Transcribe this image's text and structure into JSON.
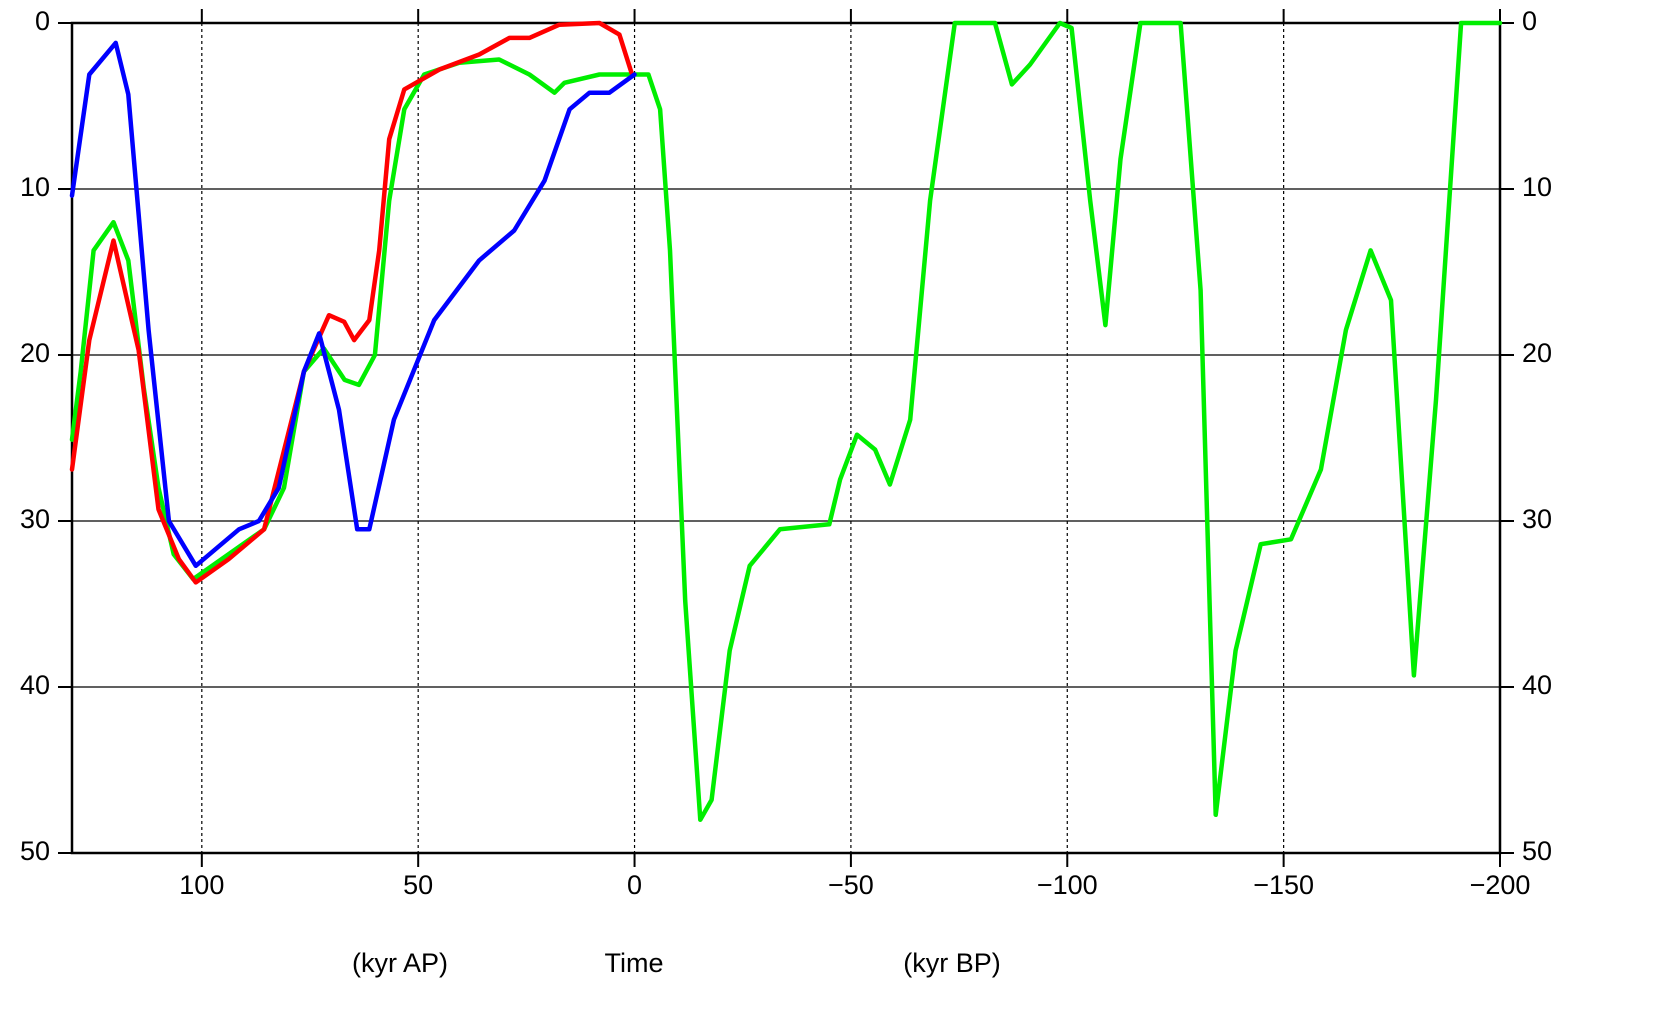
{
  "chart_data": {
    "type": "line",
    "xlim": [
      130,
      -200
    ],
    "xticks": [
      100,
      50,
      0,
      {
        "value": -50,
        "label": "−50"
      },
      {
        "value": -100,
        "label": "−100"
      },
      {
        "value": -150,
        "label": "−150"
      },
      {
        "value": -200,
        "label": "−200"
      }
    ],
    "ylim": [
      50,
      0
    ],
    "yticks": [
      0,
      10,
      20,
      30,
      40,
      50
    ],
    "grid": true,
    "annotations": [
      "(kyr AP)",
      "Time",
      "(kyr BP)"
    ],
    "series": [
      {
        "color": "#00ee00",
        "x": [
          130,
          128,
          125,
          120.4,
          117,
          113.4,
          110,
          106.5,
          102,
          93.8,
          85.6,
          81,
          76.4,
          71.8,
          67,
          63.7,
          60,
          56.7,
          53.2,
          48.6,
          40.5,
          31.3,
          24.3,
          18.5,
          16.2,
          8.1,
          0,
          -3.2,
          -5.9,
          -8.2,
          -11.7,
          -15.2,
          -17.8,
          -22,
          -26.6,
          -33.6,
          -45,
          -47.5,
          -51.4,
          -55.6,
          -59,
          -63.7,
          -68.3,
          -74,
          -83.3,
          -87.2,
          -91.4,
          -98.3,
          -101,
          -105.3,
          -108.8,
          -112.3,
          -116.9,
          -126.2,
          -130.8,
          -134.3,
          -138.9,
          -144.7,
          -151.7,
          -158.6,
          -164.4,
          -170.1,
          -174.8,
          -180.1,
          -185.2,
          -191,
          -200
        ],
        "values": [
          25.1,
          21,
          13.7,
          12,
          14.3,
          22,
          28,
          32,
          33.5,
          32,
          30.5,
          28,
          21,
          19.6,
          21.5,
          21.8,
          20,
          10.7,
          5.2,
          3.1,
          2.4,
          2.2,
          3.1,
          4.2,
          3.6,
          3.1,
          3.1,
          3.1,
          5.2,
          13.7,
          34.8,
          48,
          46.8,
          37.8,
          32.7,
          30.5,
          30.2,
          27.5,
          24.8,
          25.7,
          27.8,
          23.9,
          10.7,
          0,
          0,
          3.7,
          2.5,
          0,
          0.3,
          10.7,
          18.2,
          8.2,
          0,
          0,
          16.1,
          47.7,
          37.8,
          31.4,
          31.1,
          26.9,
          18.5,
          13.7,
          16.7,
          39.3,
          22.7,
          0,
          0
        ]
      },
      {
        "color": "#ff0000",
        "x": [
          130,
          126,
          120.4,
          114.6,
          110,
          105.3,
          101.4,
          93.8,
          85.6,
          76.4,
          70.6,
          67.1,
          64.8,
          61.3,
          59,
          56.7,
          53.2,
          45.1,
          35.9,
          28.9,
          24.3,
          17.4,
          8.1,
          3.5,
          0.7
        ],
        "values": [
          26.9,
          19.1,
          13.1,
          19.7,
          29.3,
          32.3,
          33.7,
          32.3,
          30.5,
          21,
          17.6,
          18,
          19.1,
          17.9,
          13.7,
          7,
          4,
          2.8,
          1.9,
          0.9,
          0.9,
          0.1,
          0,
          0.7,
          3
        ]
      },
      {
        "color": "#0000ff",
        "x": [
          130,
          126,
          119.9,
          117,
          112.3,
          107.6,
          101.4,
          91.4,
          86.8,
          82.2,
          76.4,
          72.9,
          68.3,
          64.1,
          61.3,
          55.6,
          46.3,
          35.9,
          27.8,
          20.8,
          15,
          10.4,
          5.8,
          0
        ],
        "values": [
          10.4,
          3.1,
          1.2,
          4.3,
          18.5,
          30,
          32.7,
          30.5,
          30,
          28,
          21,
          18.7,
          23.3,
          30.5,
          30.5,
          23.9,
          17.9,
          14.3,
          12.5,
          9.5,
          5.2,
          4.2,
          4.2,
          3.1
        ]
      }
    ]
  }
}
